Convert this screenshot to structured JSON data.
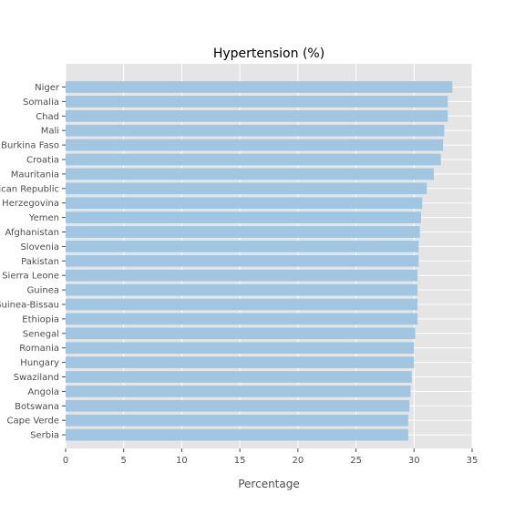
{
  "chart_data": {
    "type": "bar",
    "orientation": "horizontal",
    "title": "Hypertension (%)",
    "xlabel": "Percentage",
    "ylabel": "",
    "xlim": [
      0,
      35
    ],
    "xticks": [
      0,
      5,
      10,
      15,
      20,
      25,
      30,
      35
    ],
    "grid": true,
    "bar_color": "#a1c6e2",
    "background_color": "#e5e5e5",
    "categories": [
      "Niger",
      "Somalia",
      "Chad",
      "Mali",
      "Burkina Faso",
      "Croatia",
      "Mauritania",
      "Central African Republic",
      "Bosnia and Herzegovina",
      "Yemen",
      "Afghanistan",
      "Slovenia",
      "Pakistan",
      "Sierra Leone",
      "Guinea",
      "Guinea-Bissau",
      "Ethiopia",
      "Senegal",
      "Romania",
      "Hungary",
      "Swaziland",
      "Angola",
      "Botswana",
      "Cape Verde",
      "Serbia"
    ],
    "values": [
      33.3,
      32.9,
      32.9,
      32.6,
      32.5,
      32.3,
      31.7,
      31.1,
      30.7,
      30.6,
      30.5,
      30.4,
      30.4,
      30.3,
      30.3,
      30.3,
      30.3,
      30.1,
      30.0,
      30.0,
      29.8,
      29.7,
      29.6,
      29.5,
      29.5
    ]
  }
}
